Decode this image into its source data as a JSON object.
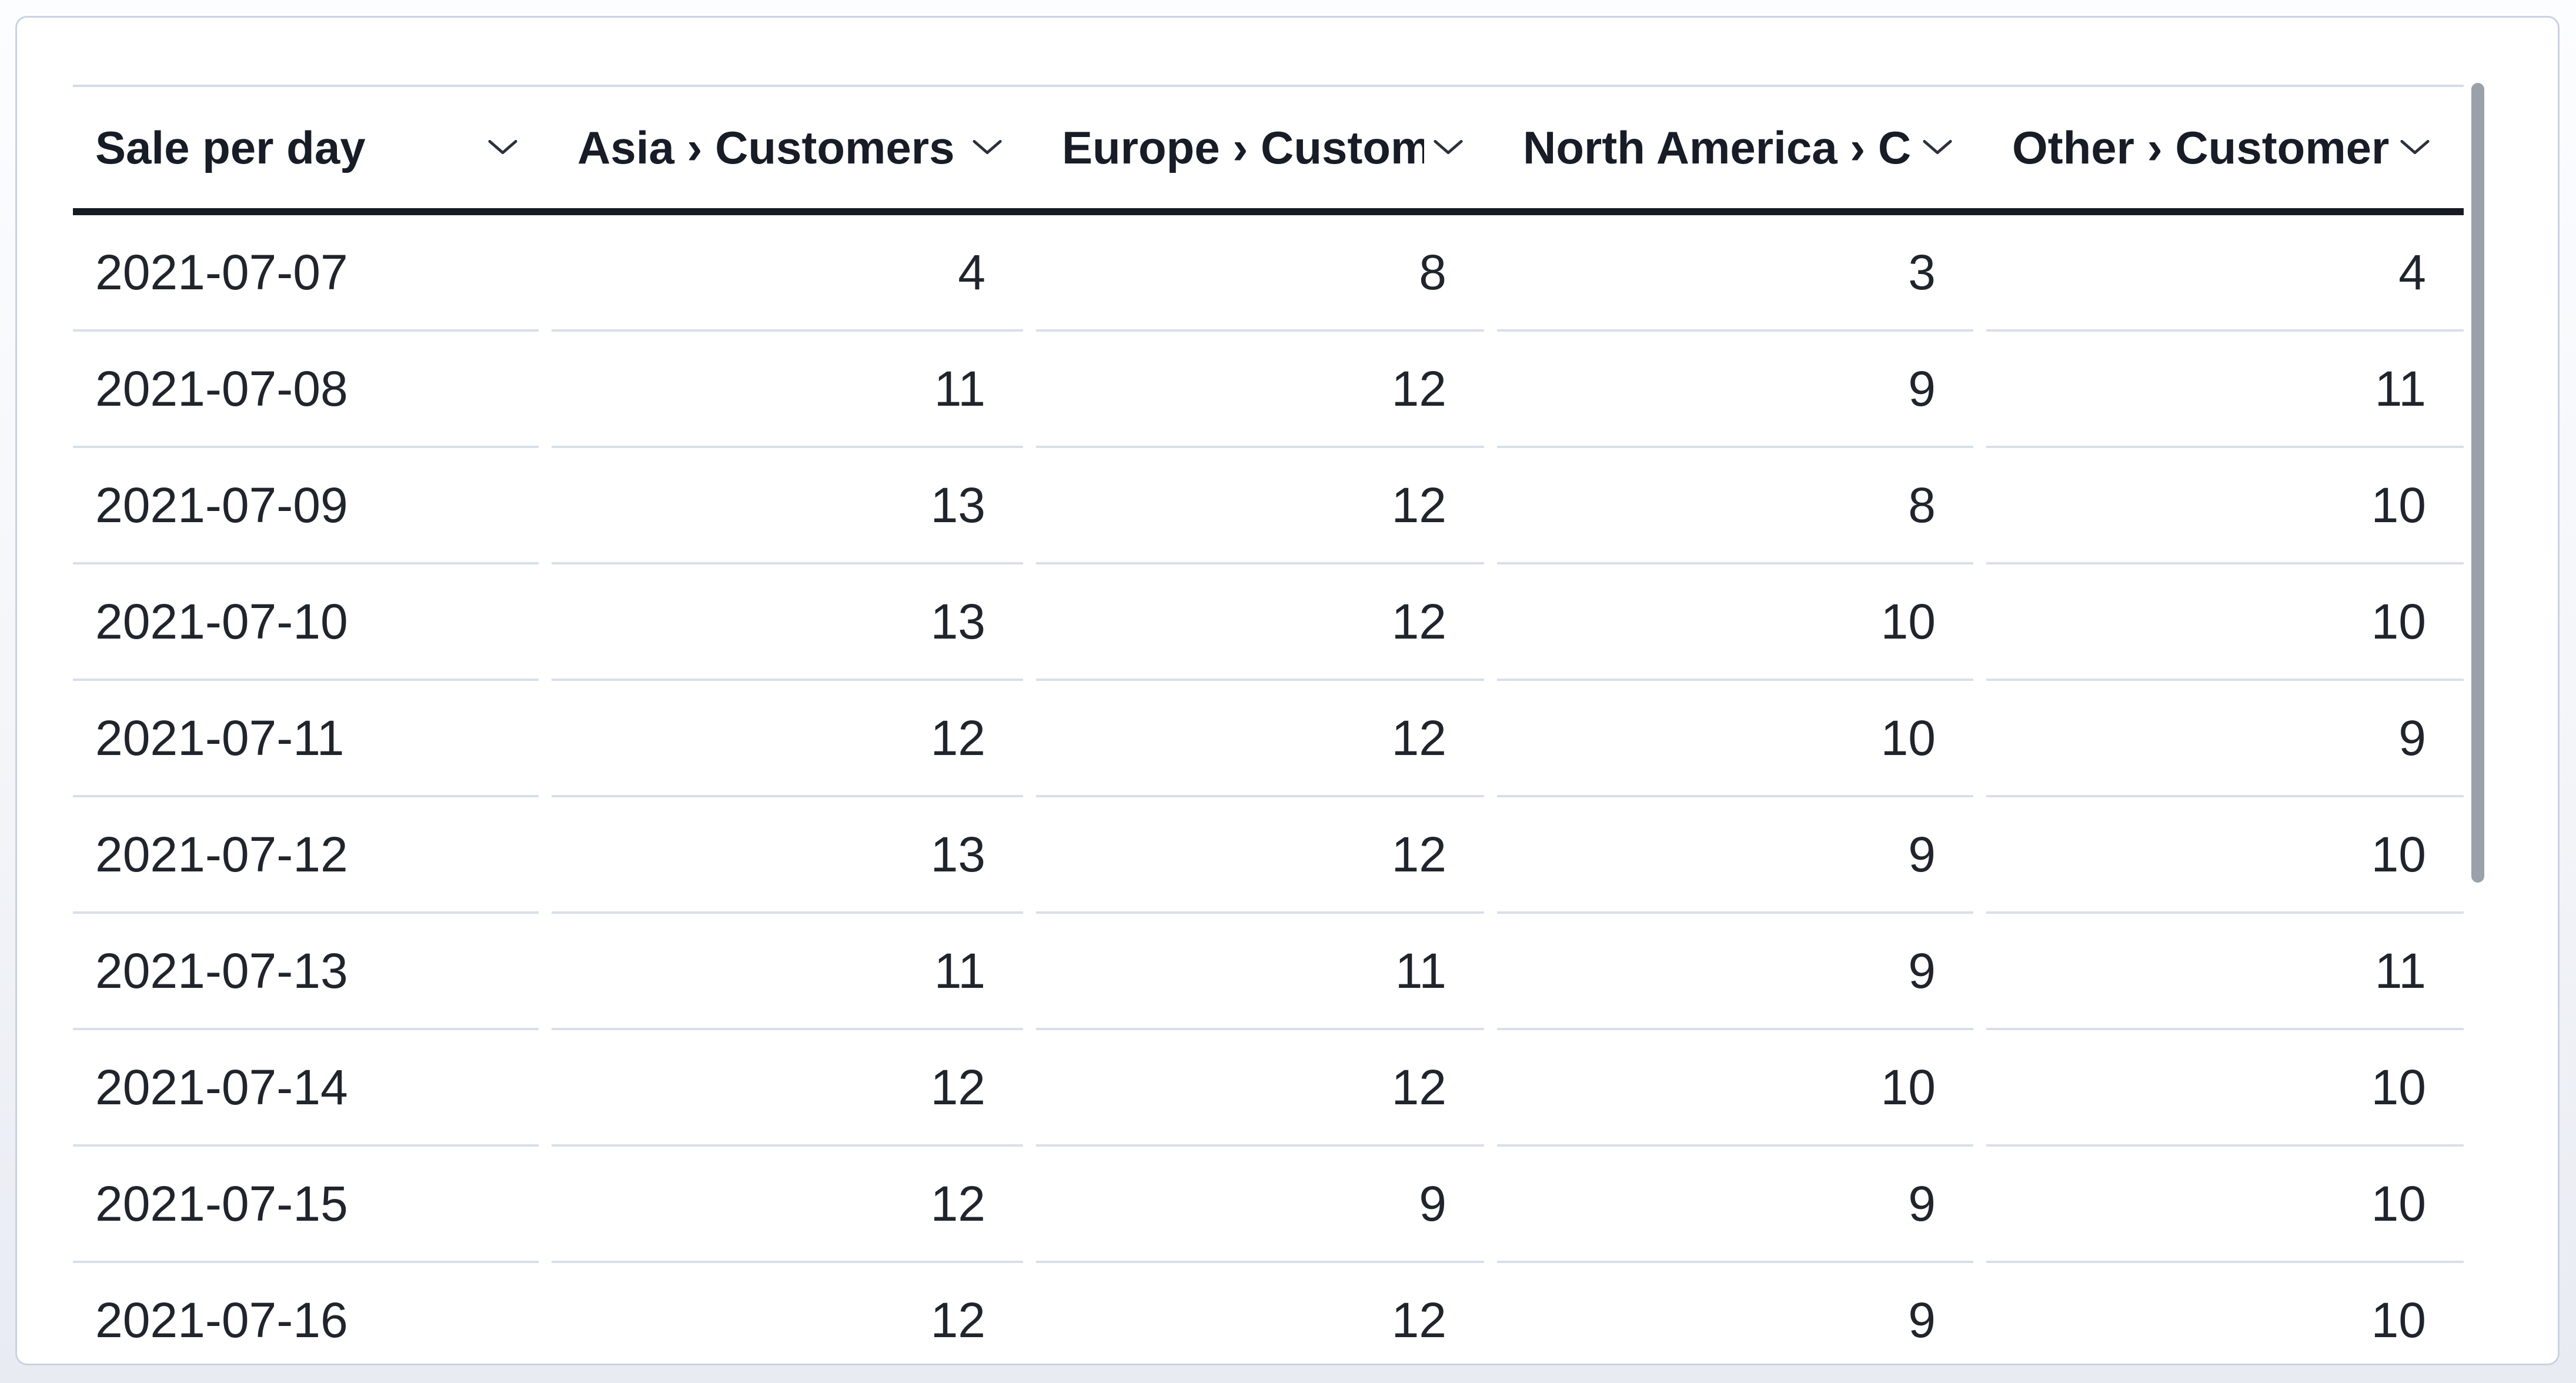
{
  "table": {
    "columns": [
      {
        "label": "Sale per day",
        "slug": "sale-per-day",
        "align": "left"
      },
      {
        "label": "Asia › Customers",
        "slug": "asia-customers",
        "align": "right"
      },
      {
        "label": "Europe › Customers",
        "slug": "europe-customers",
        "align": "right"
      },
      {
        "label": "North America › Customers",
        "slug": "north-america-customers",
        "align": "right"
      },
      {
        "label": "Other › Customers",
        "slug": "other-customers",
        "align": "right"
      }
    ],
    "rows": [
      [
        "2021-07-07",
        "4",
        "8",
        "3",
        "4"
      ],
      [
        "2021-07-08",
        "11",
        "12",
        "9",
        "11"
      ],
      [
        "2021-07-09",
        "13",
        "12",
        "8",
        "10"
      ],
      [
        "2021-07-10",
        "13",
        "12",
        "10",
        "10"
      ],
      [
        "2021-07-11",
        "12",
        "12",
        "10",
        "9"
      ],
      [
        "2021-07-12",
        "13",
        "12",
        "9",
        "10"
      ],
      [
        "2021-07-13",
        "11",
        "11",
        "9",
        "11"
      ],
      [
        "2021-07-14",
        "12",
        "12",
        "10",
        "10"
      ],
      [
        "2021-07-15",
        "12",
        "9",
        "9",
        "10"
      ],
      [
        "2021-07-16",
        "12",
        "12",
        "9",
        "10"
      ]
    ]
  },
  "icons": {
    "header_sort_icon": "chevron-down"
  },
  "scrollbar": {
    "orientation": "vertical",
    "thumb_color": "#9aa1ab"
  },
  "colors": {
    "card_background": "#ffffff",
    "card_border": "#c9d3e1",
    "header_text": "#171c26",
    "body_text": "#20242c",
    "header_underline": "#171b22",
    "row_divider": "#d9dfe9",
    "table_top_border": "#d4dbe6",
    "page_background": "#eef0f6"
  }
}
